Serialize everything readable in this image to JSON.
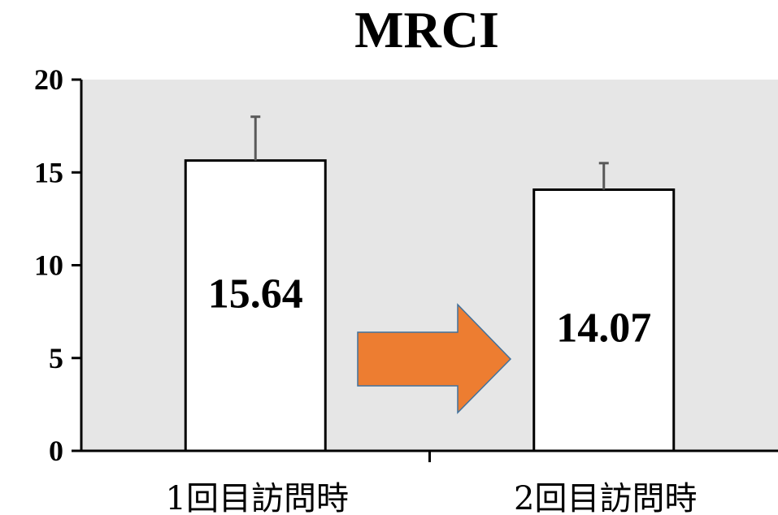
{
  "chart_data": {
    "type": "bar",
    "title": "MRCI",
    "categories": [
      "1回目訪問時",
      "2回目訪問時"
    ],
    "values": [
      15.64,
      14.07
    ],
    "value_labels": [
      "15.64",
      "14.07"
    ],
    "error_upper": [
      18.0,
      15.5
    ],
    "ylim": [
      0,
      20
    ],
    "yticks": [
      0,
      5,
      10,
      15,
      20
    ],
    "ytick_labels": [
      "0",
      "5",
      "10",
      "15",
      "20"
    ],
    "xlabel": "",
    "ylabel": "",
    "grid": false,
    "colors": {
      "plot_background": "#e6e6e6",
      "bar_fill": "#ffffff",
      "bar_stroke": "#000000",
      "error_bar": "#595959",
      "arrow_fill": "#ed7d31",
      "arrow_stroke": "#41719c"
    },
    "annotations": [
      {
        "type": "arrow",
        "direction": "right",
        "from": "1回目訪問時",
        "to": "2回目訪問時"
      }
    ]
  }
}
